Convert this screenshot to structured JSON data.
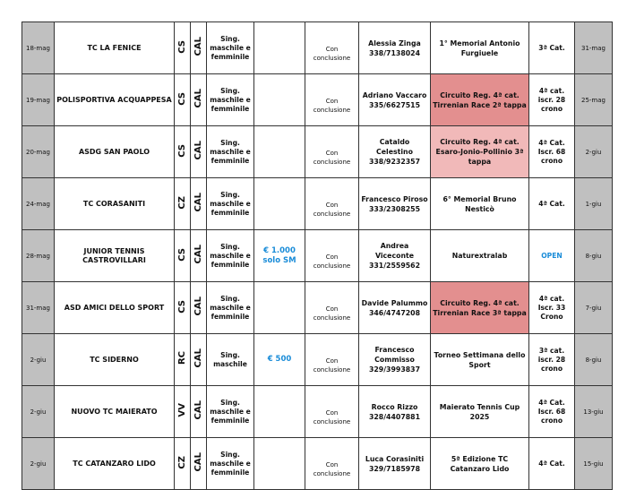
{
  "colors": {
    "date_bg": "#c0c0c0",
    "circuit_dark": "#e38f8f",
    "circuit_light": "#f1b9b9",
    "accent_blue": "#1a8cd8"
  },
  "rows": [
    {
      "start": "18-mag",
      "club": "TC LA FENICE",
      "prov": "CS",
      "region": "CAL",
      "type": "Sing. maschile e femminile",
      "prize": "",
      "mode": "Con conclusione",
      "contact_name": "Alessia Zinga",
      "contact_phone": "338/7138024",
      "event": "1° Memorial Antonio Furgiuele",
      "highlight": "",
      "cat": "3ª Cat.",
      "end": "31-mag"
    },
    {
      "start": "19-mag",
      "club": "POLISPORTIVA ACQUAPPESA",
      "prov": "CS",
      "region": "CAL",
      "type": "Sing. maschile e femminile",
      "prize": "",
      "mode": "Con conclusione",
      "contact_name": "Adriano Vaccaro",
      "contact_phone": "335/6627515",
      "event": "Circuito Reg. 4ª cat. Tirrenian Race 2ª tappa",
      "highlight": "dark",
      "cat": "4ª cat. iscr. 28 crono",
      "end": "25-mag"
    },
    {
      "start": "20-mag",
      "club": "ASDG SAN PAOLO",
      "prov": "CS",
      "region": "CAL",
      "type": "Sing. maschile e femminile",
      "prize": "",
      "mode": "Con conclusione",
      "contact_name": "Cataldo Celestino",
      "contact_phone": "338/9232357",
      "event": "Circuito Reg. 4ª cat. Esaro-Jonio-Pollinio 3ª tappa",
      "highlight": "light",
      "cat": "4ª Cat. Iscr. 68 crono",
      "end": "2-giu"
    },
    {
      "start": "24-mag",
      "club": "TC CORASANITI",
      "prov": "CZ",
      "region": "CAL",
      "type": "Sing. maschile e femminile",
      "prize": "",
      "mode": "Con conclusione",
      "contact_name": "Francesco Piroso",
      "contact_phone": "333/2308255",
      "event": "6° Memorial Bruno Nesticò",
      "highlight": "",
      "cat": "4ª Cat.",
      "end": "1-giu"
    },
    {
      "start": "28-mag",
      "club": "JUNIOR TENNIS CASTROVILLARI",
      "prov": "CS",
      "region": "CAL",
      "type": "Sing. maschile e femminile",
      "prize": "€ 1.000 solo SM",
      "mode": "Con conclusione",
      "contact_name": "Andrea Viceconte",
      "contact_phone": "331/2559562",
      "event": "Naturextralab",
      "highlight": "",
      "cat": "OPEN",
      "end": "8-giu"
    },
    {
      "start": "31-mag",
      "club": "ASD AMICI DELLO SPORT",
      "prov": "CS",
      "region": "CAL",
      "type": "Sing. maschile e femminile",
      "prize": "",
      "mode": "Con conclusione",
      "contact_name": "Davide Palummo",
      "contact_phone": "346/4747208",
      "event": "Circuito Reg. 4ª cat. Tirrenian Race 3ª tappa",
      "highlight": "dark",
      "cat": "4ª cat. Iscr. 33 Crono",
      "end": "7-giu"
    },
    {
      "start": "2-giu",
      "club": "TC SIDERNO",
      "prov": "RC",
      "region": "CAL",
      "type": "Sing. maschile",
      "prize": "€ 500",
      "mode": "Con conclusione",
      "contact_name": "Francesco Commisso",
      "contact_phone": "329/3993837",
      "event": "Torneo Settimana dello Sport",
      "highlight": "",
      "cat": "3ª cat. iscr. 28 crono",
      "end": "8-giu"
    },
    {
      "start": "2-giu",
      "club": "NUOVO TC MAIERATO",
      "prov": "VV",
      "region": "CAL",
      "type": "Sing. maschile e femminile",
      "prize": "",
      "mode": "Con conclusione",
      "contact_name": "Rocco Rizzo",
      "contact_phone": "328/4407881",
      "event": "Maierato Tennis Cup 2025",
      "highlight": "",
      "cat": "4ª Cat. Iscr. 68 crono",
      "end": "13-giu"
    },
    {
      "start": "2-giu",
      "club": "TC CATANZARO LIDO",
      "prov": "CZ",
      "region": "CAL",
      "type": "Sing. maschile e femminile",
      "prize": "",
      "mode": "Con conclusione",
      "contact_name": "Luca Corasiniti",
      "contact_phone": "329/7185978",
      "event": "5ª Edizione TC Catanzaro Lido",
      "highlight": "",
      "cat": "4ª Cat.",
      "end": "15-giu"
    }
  ]
}
